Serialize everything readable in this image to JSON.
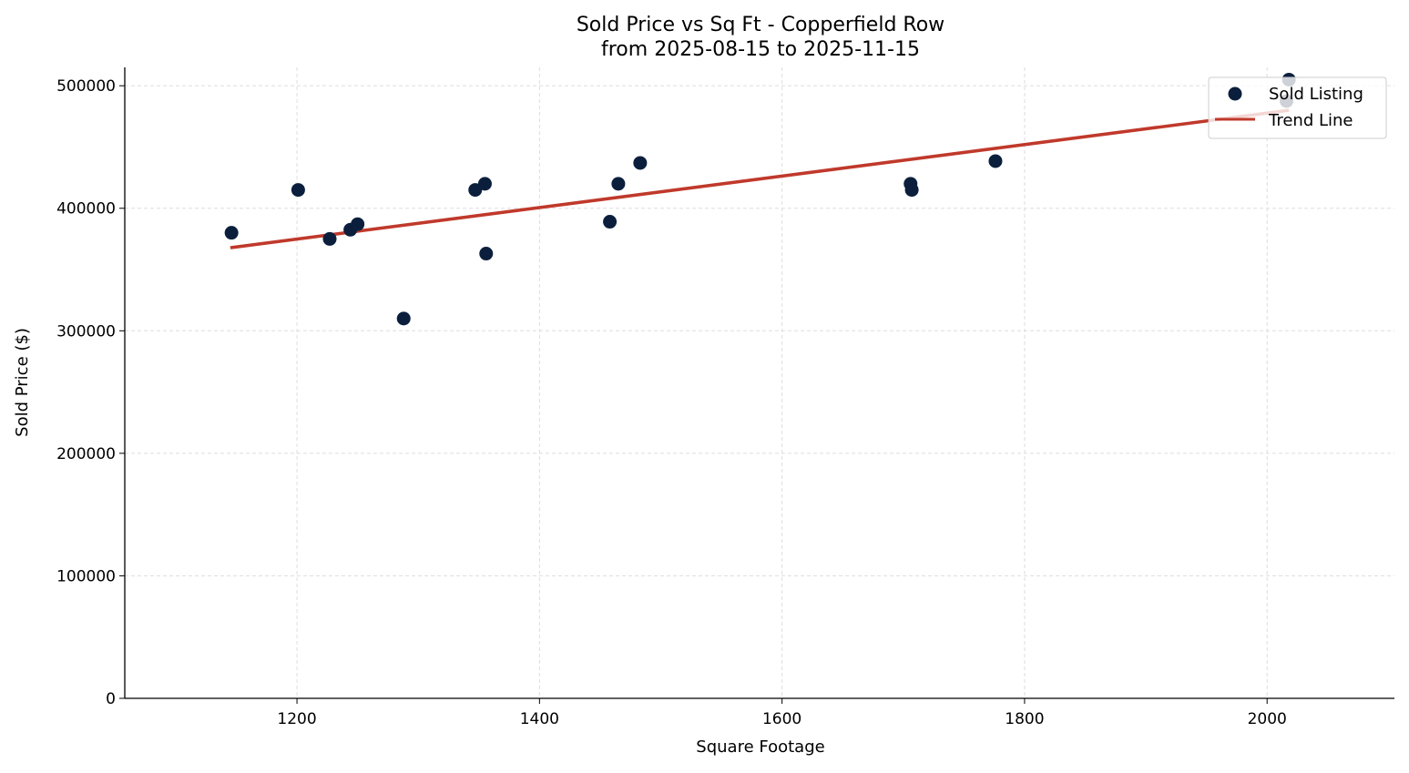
{
  "chart_data": {
    "type": "scatter",
    "title": "Sold Price vs Sq Ft - Copperfield Row",
    "subtitle": "from 2025-08-15 to 2025-11-15",
    "xlabel": "Square Footage",
    "ylabel": "Sold Price ($)",
    "xlim": [
      1058,
      2105
    ],
    "ylim": [
      0,
      515000
    ],
    "xticks": [
      1200,
      1400,
      1600,
      1800,
      2000
    ],
    "yticks": [
      0,
      100000,
      200000,
      300000,
      400000,
      500000
    ],
    "grid": true,
    "legend_placement": "top-right",
    "colors": {
      "points": "#0b1f3d",
      "trend": "#c0392b"
    },
    "series": [
      {
        "name": "Sold Listing",
        "type": "scatter",
        "points": [
          [
            1146,
            380000
          ],
          [
            1201,
            415000
          ],
          [
            1227,
            375000
          ],
          [
            1244,
            382500
          ],
          [
            1250,
            387000
          ],
          [
            1288,
            310000
          ],
          [
            1347,
            415000
          ],
          [
            1355,
            420000
          ],
          [
            1356,
            363000
          ],
          [
            1458,
            389000
          ],
          [
            1465,
            420000
          ],
          [
            1483,
            437000
          ],
          [
            1706,
            420000
          ],
          [
            1707,
            415000
          ],
          [
            1776,
            438500
          ],
          [
            2016,
            487500
          ],
          [
            2018,
            505000
          ]
        ]
      },
      {
        "name": "Trend Line",
        "type": "line",
        "points": [
          [
            1145,
            367800
          ],
          [
            2018,
            480000
          ]
        ]
      }
    ]
  }
}
